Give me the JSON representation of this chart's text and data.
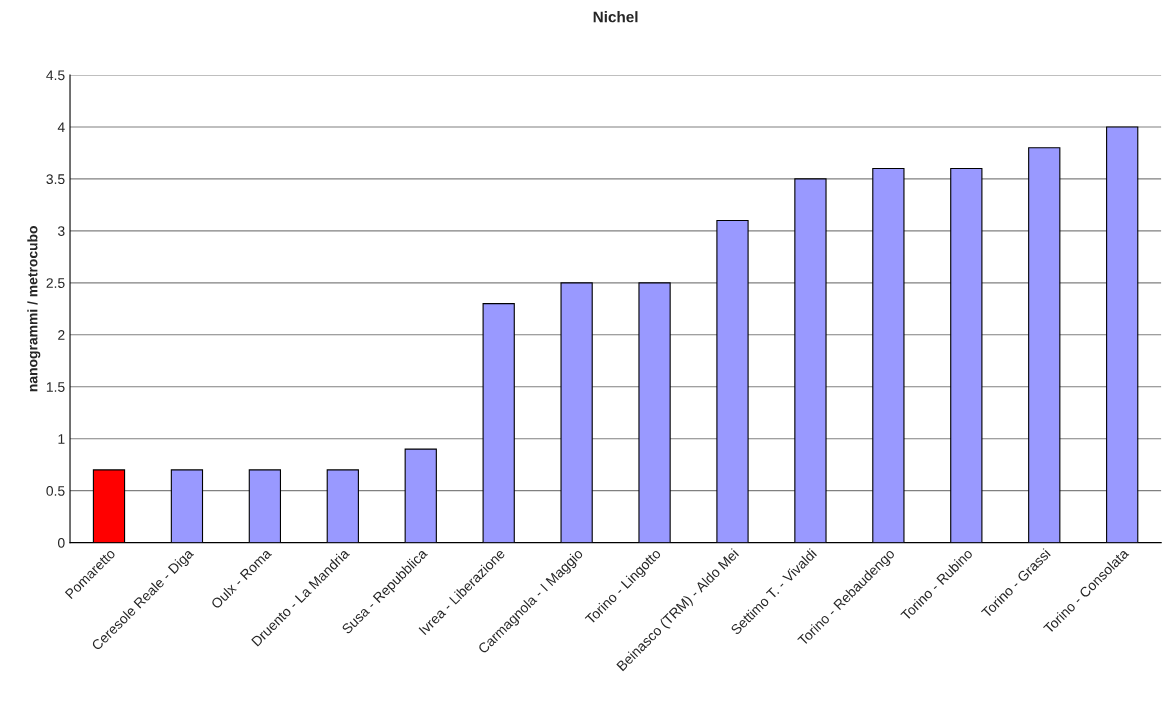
{
  "chart_data": {
    "type": "bar",
    "title": "Nichel",
    "ylabel": "nanogrammi / metrocubo",
    "categories": [
      "Pomaretto",
      "Ceresole Reale - Diga",
      "Oulx - Roma",
      "Druento - La Mandria",
      "Susa - Repubblica",
      "Ivrea - Liberazione",
      "Carmagnola - I Maggio",
      "Torino - Lingotto",
      "Beinasco (TRM) - Aldo Mei",
      "Settimo T. - Vivaldi",
      "Torino - Rebaudengo",
      "Torino - Rubino",
      "Torino - Grassi",
      "Torino - Consolata"
    ],
    "values": [
      0.7,
      0.7,
      0.7,
      0.7,
      0.9,
      2.3,
      2.5,
      2.5,
      3.1,
      3.5,
      3.6,
      3.6,
      3.8,
      4.0
    ],
    "colors": [
      "#ff0000",
      "#9999ff",
      "#9999ff",
      "#9999ff",
      "#9999ff",
      "#9999ff",
      "#9999ff",
      "#9999ff",
      "#9999ff",
      "#9999ff",
      "#9999ff",
      "#9999ff",
      "#9999ff",
      "#9999ff"
    ],
    "ylim": [
      0,
      4.5
    ],
    "yticks": [
      0,
      0.5,
      1,
      1.5,
      2,
      2.5,
      3,
      3.5,
      4,
      4.5
    ],
    "grid": "y"
  }
}
